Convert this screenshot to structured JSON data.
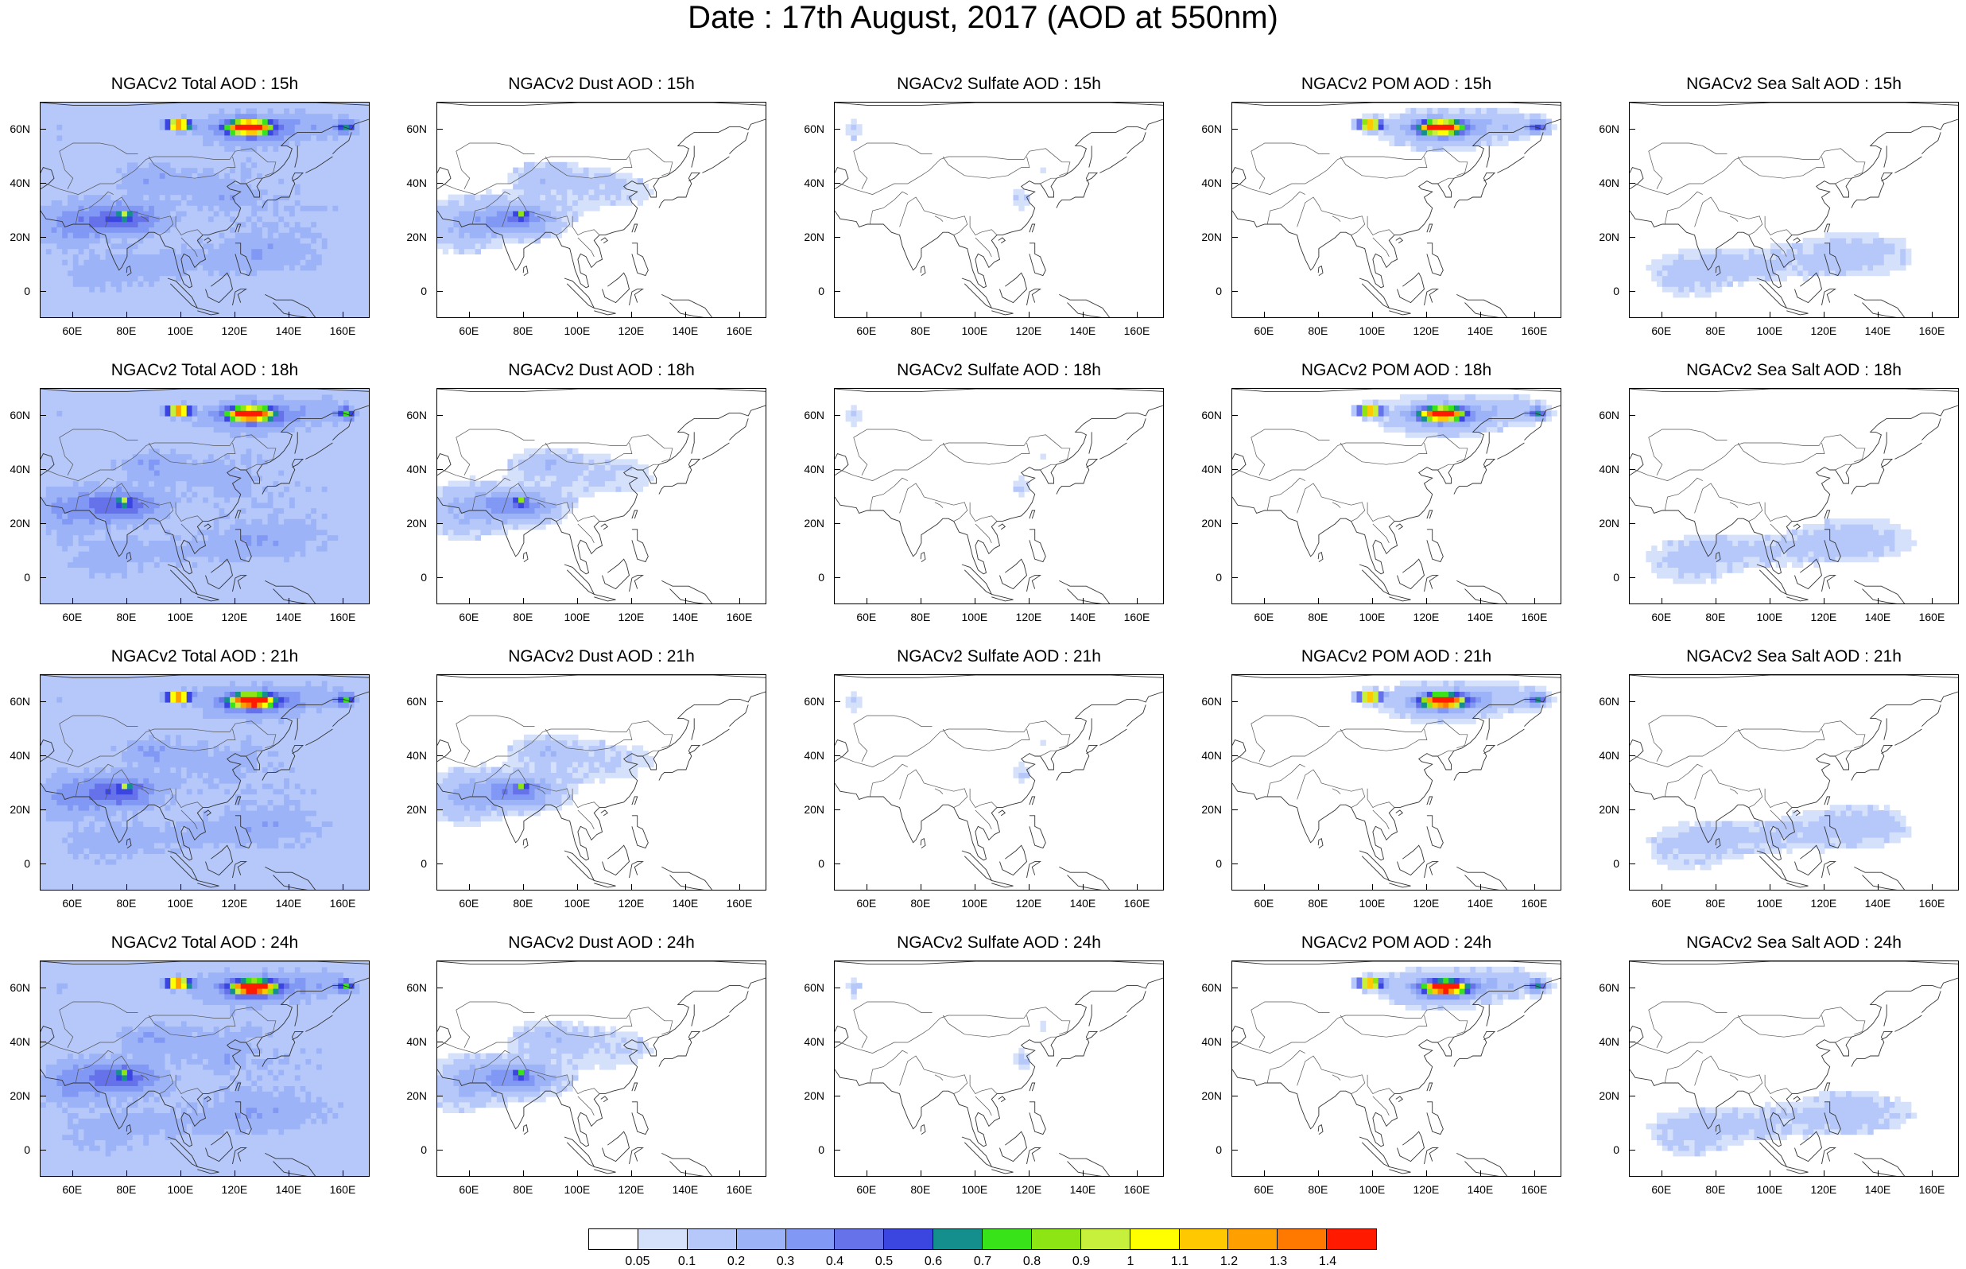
{
  "title": "Date : 17th August, 2017 (AOD at 550nm)",
  "panel_titles": [
    [
      "NGACv2 Total AOD : 15h",
      "NGACv2 Dust AOD : 15h",
      "NGACv2 Sulfate AOD : 15h",
      "NGACv2 POM AOD : 15h",
      "NGACv2 Sea Salt AOD : 15h"
    ],
    [
      "NGACv2 Total AOD : 18h",
      "NGACv2 Dust AOD : 18h",
      "NGACv2 Sulfate AOD : 18h",
      "NGACv2 POM AOD : 18h",
      "NGACv2 Sea Salt AOD : 18h"
    ],
    [
      "NGACv2 Total AOD : 21h",
      "NGACv2 Dust AOD : 21h",
      "NGACv2 Sulfate AOD : 21h",
      "NGACv2 POM AOD : 21h",
      "NGACv2 Sea Salt AOD : 21h"
    ],
    [
      "NGACv2 Total AOD : 24h",
      "NGACv2 Dust AOD : 24h",
      "NGACv2 Sulfate AOD : 24h",
      "NGACv2 POM AOD : 24h",
      "NGACv2 Sea Salt  AOD : 24h"
    ]
  ],
  "map_extent": {
    "lon": [
      48,
      170
    ],
    "lat": [
      -10,
      70
    ]
  },
  "lat_ticks": [
    {
      "value": 60,
      "label": "60N"
    },
    {
      "value": 40,
      "label": "40N"
    },
    {
      "value": 20,
      "label": "20N"
    },
    {
      "value": 0,
      "label": "0"
    }
  ],
  "lon_ticks": [
    {
      "value": 60,
      "label": "60E"
    },
    {
      "value": 80,
      "label": "80E"
    },
    {
      "value": 100,
      "label": "100E"
    },
    {
      "value": 120,
      "label": "120E"
    },
    {
      "value": 140,
      "label": "140E"
    },
    {
      "value": 160,
      "label": "160E"
    }
  ],
  "colorbar": {
    "labels": [
      "0.05",
      "0.1",
      "0.2",
      "0.3",
      "0.4",
      "0.5",
      "0.6",
      "0.7",
      "0.8",
      "0.9",
      "1",
      "1.1",
      "1.2",
      "1.3",
      "1.4"
    ],
    "colors": [
      "#ffffff",
      "#d5e1fb",
      "#b6c8fa",
      "#9db3f8",
      "#8198f4",
      "#6572e9",
      "#3b45e0",
      "#148f8d",
      "#39e31a",
      "#8ee514",
      "#c6f03c",
      "#ffff00",
      "#ffc800",
      "#ffa000",
      "#ff7800",
      "#ff1a00"
    ]
  }
}
